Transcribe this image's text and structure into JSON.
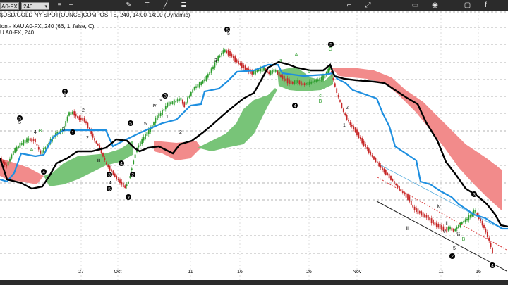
{
  "toolbar": {
    "symbol": "A0-FX",
    "timeframe": "240",
    "icons": [
      "menu-icon",
      "crosshair-icon",
      "pencil-icon",
      "text-icon",
      "line-icon",
      "fib-icon",
      "bracket-icon",
      "expand-icon",
      "lock-icon",
      "eye-icon",
      "trash-icon",
      "settings-icon",
      "save-icon",
      "facebook-icon"
    ]
  },
  "legend": {
    "line1": "$USD/GOLD NY SPOT(OUNCE)COMPOSITE, 240, 14:00-14:00 (Dynamic)",
    "line2": "ion - XAU A0-FX, 240 (66, 1, false, C)",
    "line3": "U A0-FX, 240"
  },
  "x_labels": [
    "27",
    "Oct",
    "11",
    "16",
    "26",
    "Nov",
    "11",
    "16"
  ],
  "wave_labels": {
    "circled": [
      "5",
      "5",
      "3",
      "4",
      "5",
      "4",
      "3",
      "1",
      "2",
      "3",
      "5",
      "5",
      "4",
      "1",
      "2",
      "4",
      "3",
      "5"
    ],
    "plain": [
      "5",
      "4",
      "A",
      "B",
      "2",
      "5",
      "3",
      "iii",
      "iv",
      "v",
      "5",
      "4",
      "C",
      "2",
      "1",
      "A",
      "a",
      "b",
      "c",
      "B",
      "5",
      "iv",
      "v",
      "iii",
      "ii",
      "iii",
      "i",
      "2",
      "1",
      "B",
      "3",
      "5",
      "2"
    ]
  },
  "colors": {
    "bull_candle": "#2e9d2e",
    "bear_candle": "#c62828",
    "blue_line": "#1e8fe0",
    "black_line": "#000000",
    "cloud_green": "#78c478",
    "cloud_red": "#f28b8b",
    "channel_red": "#d83a3a",
    "channel_blue": "#5bb0e0"
  }
}
